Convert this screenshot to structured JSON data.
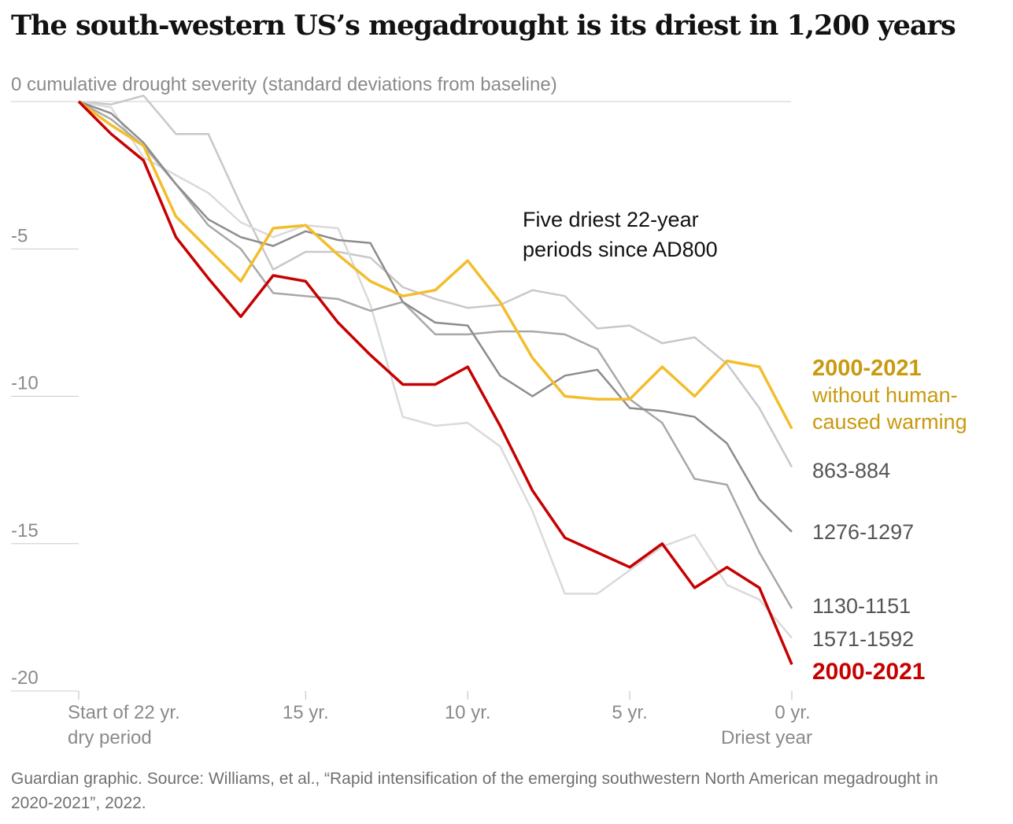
{
  "title": "The south-western US’s megadrought is its driest in 1,200 years",
  "source": "Guardian graphic. Source: Williams, et al., “Rapid intensification of the emerging southwestern North American megadrought in 2020-2021”, 2022.",
  "chart_data": {
    "type": "line",
    "title": "The south-western US’s megadrought is its driest in 1,200 years",
    "ylabel": "cumulative drought severity (standard deviations from baseline)",
    "annotation": "Five driest 22-year periods since AD800",
    "ylim": [
      -20,
      0
    ],
    "yticks": [
      0,
      -5,
      -10,
      -15,
      -20
    ],
    "ytick_labels": [
      "0",
      "-5",
      "-10",
      "-15",
      "-20"
    ],
    "x": [
      22,
      21,
      20,
      19,
      18,
      17,
      16,
      15,
      14,
      13,
      12,
      11,
      10,
      9,
      8,
      7,
      6,
      5,
      4,
      3,
      2,
      1,
      0
    ],
    "xlim": [
      22,
      0
    ],
    "xticks": [
      {
        "value": 22,
        "line1": "Start of 22 yr.",
        "line2": "dry period"
      },
      {
        "value": 15,
        "line1": "15 yr.",
        "line2": ""
      },
      {
        "value": 10,
        "line1": "10 yr.",
        "line2": ""
      },
      {
        "value": 5,
        "line1": "5 yr.",
        "line2": ""
      },
      {
        "value": 0,
        "line1": "0 yr.",
        "line2": "Driest year"
      }
    ],
    "grid": "horizontal-ticks-only",
    "legend": "direct labels at right",
    "series": [
      {
        "name": "863-884",
        "color": "#c8c8c8",
        "label_color": "#555555",
        "width": 2.5,
        "values": [
          0,
          -0.1,
          0.2,
          -1.1,
          -1.1,
          -3.5,
          -5.7,
          -5.1,
          -5.1,
          -5.3,
          -6.3,
          -6.7,
          -7.0,
          -6.9,
          -6.4,
          -6.6,
          -7.7,
          -7.6,
          -8.2,
          -8.0,
          -8.9,
          -10.4,
          -12.4
        ]
      },
      {
        "name": "1571-1592",
        "color": "#dadada",
        "label_color": "#555555",
        "width": 2.5,
        "values": [
          0,
          -0.2,
          -1.9,
          -2.5,
          -3.1,
          -4.1,
          -4.6,
          -4.2,
          -4.3,
          -6.9,
          -10.7,
          -11.0,
          -10.9,
          -11.7,
          -13.9,
          -16.7,
          -16.7,
          -15.9,
          -15.1,
          -14.7,
          -16.4,
          -16.9,
          -18.2
        ]
      },
      {
        "name": "1130-1151",
        "color": "#a8a8a8",
        "label_color": "#555555",
        "width": 2.5,
        "values": [
          0,
          -0.6,
          -1.5,
          -2.8,
          -4.2,
          -5.0,
          -6.5,
          -6.6,
          -6.7,
          -7.1,
          -6.8,
          -7.9,
          -7.9,
          -7.8,
          -7.8,
          -7.9,
          -8.4,
          -10.1,
          -10.9,
          -12.8,
          -13.0,
          -15.3,
          -17.2
        ]
      },
      {
        "name": "1276-1297",
        "color": "#8c8c8c",
        "label_color": "#555555",
        "width": 2.5,
        "values": [
          0,
          -0.4,
          -1.4,
          -2.8,
          -4.0,
          -4.6,
          -4.9,
          -4.4,
          -4.7,
          -4.8,
          -6.8,
          -7.5,
          -7.6,
          -9.3,
          -10.0,
          -9.3,
          -9.1,
          -10.4,
          -10.5,
          -10.7,
          -11.6,
          -13.5,
          -14.6
        ]
      },
      {
        "name": "2000-2021 without human-caused warming",
        "label_lines": [
          "2000-2021",
          "without human-",
          "caused warming"
        ],
        "color": "#f3bd2c",
        "label_color": "#c99a0e",
        "width": 3.5,
        "values": [
          0,
          -0.8,
          -1.5,
          -3.9,
          -5.0,
          -6.1,
          -4.3,
          -4.2,
          -5.2,
          -6.1,
          -6.6,
          -6.4,
          -5.4,
          -6.8,
          -8.7,
          -10.0,
          -10.1,
          -10.1,
          -9.0,
          -10.0,
          -8.8,
          -9.0,
          -11.1
        ]
      },
      {
        "name": "2000-2021",
        "color": "#c70000",
        "label_color": "#c70000",
        "width": 3.5,
        "values": [
          0,
          -1.1,
          -2.0,
          -4.6,
          -6.0,
          -7.3,
          -5.9,
          -6.1,
          -7.5,
          -8.6,
          -9.6,
          -9.6,
          -9.0,
          -11.0,
          -13.2,
          -14.8,
          -15.3,
          -15.8,
          -15.0,
          -16.5,
          -15.8,
          -16.5,
          -19.1
        ]
      }
    ]
  }
}
